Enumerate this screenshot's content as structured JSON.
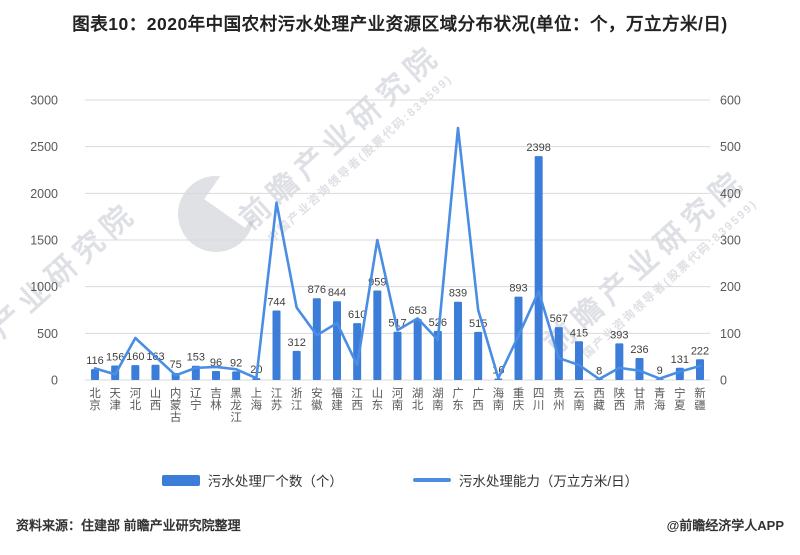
{
  "title": "图表10：2020年中国农村污水处理产业资源区域分布状况(单位：个，万立方米/日)",
  "chart_data": {
    "type": "bar",
    "categories": [
      "北京",
      "天津",
      "河北",
      "山西",
      "内蒙古",
      "辽宁",
      "吉林",
      "黑龙江",
      "上海",
      "江苏",
      "浙江",
      "安徽",
      "福建",
      "江西",
      "山东",
      "河南",
      "湖北",
      "湖南",
      "广东",
      "广西",
      "海南",
      "重庆",
      "四川",
      "贵州",
      "云南",
      "西藏",
      "陕西",
      "甘肃",
      "青海",
      "宁夏",
      "新疆"
    ],
    "series": [
      {
        "name": "污水处理厂个数（个）",
        "type": "bar",
        "axis": "left",
        "color": "#3c7dd9",
        "values": [
          116,
          156,
          160,
          163,
          75,
          153,
          96,
          92,
          20,
          744,
          312,
          876,
          844,
          610,
          959,
          517,
          653,
          526,
          839,
          515,
          16,
          893,
          2398,
          567,
          415,
          8,
          393,
          236,
          9,
          131,
          222
        ]
      },
      {
        "name": "污水处理能力（万立方米/日）",
        "type": "line",
        "axis": "right",
        "color": "#4a8ee3",
        "values": [
          25,
          12,
          90,
          50,
          10,
          26,
          28,
          23,
          4,
          380,
          155,
          96,
          122,
          32,
          300,
          107,
          132,
          86,
          540,
          150,
          4,
          95,
          190,
          47,
          32,
          2,
          26,
          20,
          3,
          18,
          30
        ]
      }
    ],
    "left_axis": {
      "min": 0,
      "max": 3000,
      "ticks": [
        3000,
        2500,
        2000,
        1500,
        1000,
        500,
        0
      ]
    },
    "right_axis": {
      "min": 0,
      "max": 600,
      "ticks": [
        600,
        500,
        400,
        300,
        200,
        100,
        0
      ]
    },
    "grid": true,
    "legend_position": "bottom",
    "xlabel": "",
    "ylabel_left": "个",
    "ylabel_right": "万立方米/日"
  },
  "legend": {
    "bar_label": "污水处理厂个数（个）",
    "line_label": "污水处理能力（万立方米/日）"
  },
  "footer": {
    "source": "资料来源：住建部 前瞻产业研究院整理",
    "credit": "@前瞻经济学人APP"
  },
  "watermark": {
    "main": "前瞻产业研究院",
    "sub": "中国产业咨询领导者(股票代码:839599)"
  },
  "colors": {
    "bar": "#3c7dd9",
    "line": "#4a8ee3",
    "gridline": "#d9d9d9",
    "tick_text": "#595959",
    "value_label": "#404040"
  }
}
